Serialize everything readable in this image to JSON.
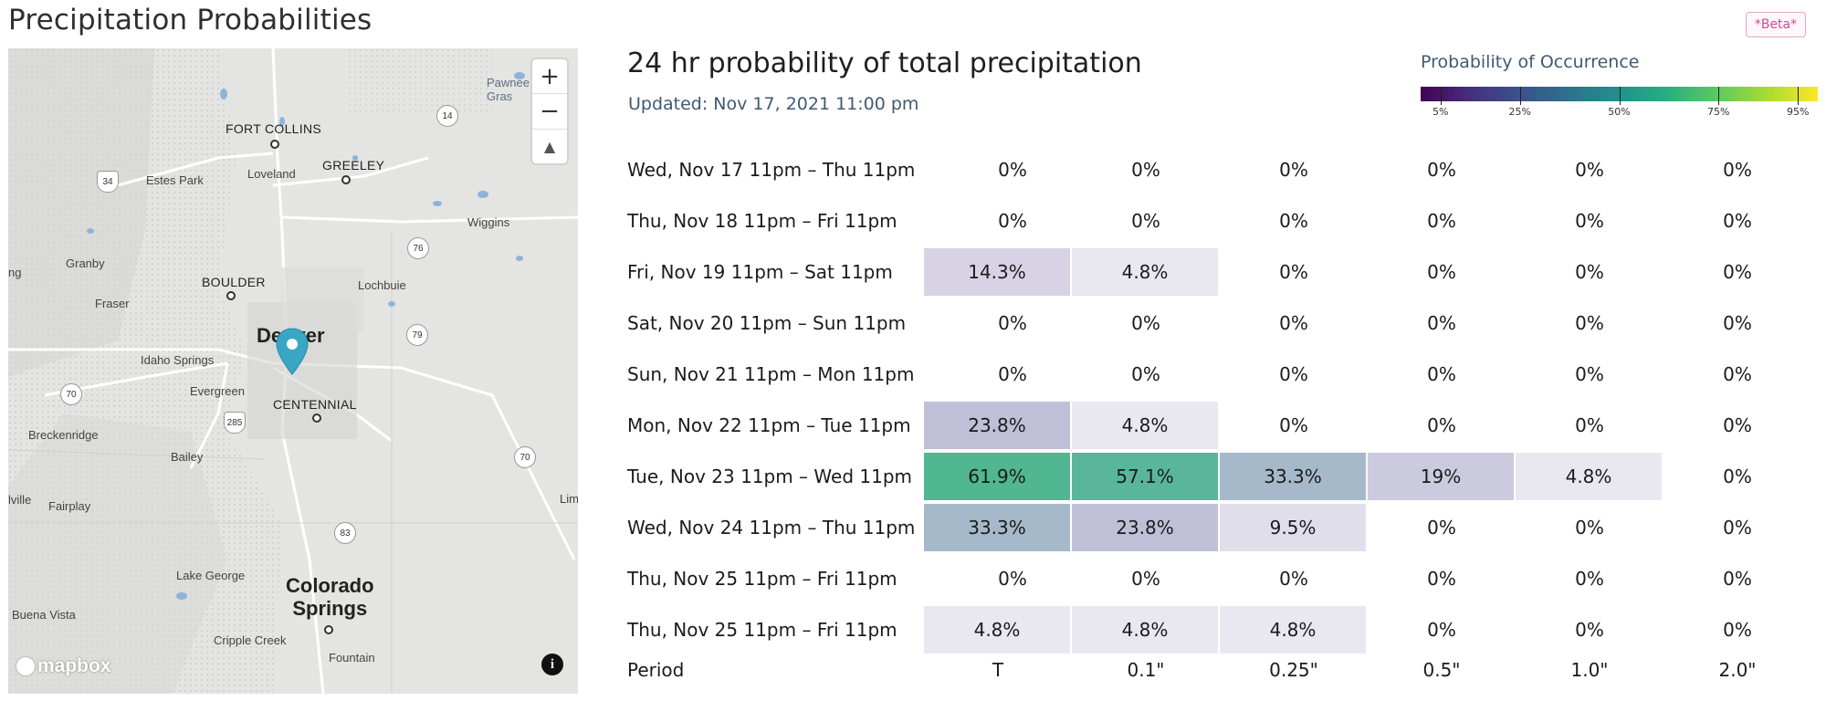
{
  "page_title": "Precipitation Probabilities",
  "beta_badge": "*Beta*",
  "map": {
    "labels": {
      "fort_collins": "FORT COLLINS",
      "greeley": "GREELEY",
      "loveland": "Loveland",
      "estes_park": "Estes Park",
      "wiggins": "Wiggins",
      "granby": "Granby",
      "boulder": "BOULDER",
      "lochbuie": "Lochbuie",
      "fraser": "Fraser",
      "denver": "Denver",
      "idaho_springs": "Idaho Springs",
      "evergreen": "Evergreen",
      "centennial": "CENTENNIAL",
      "breckenridge": "Breckenridge",
      "bailey": "Bailey",
      "fairplay": "Fairplay",
      "lake_george": "Lake George",
      "colorado_springs": "Colorado\nSprings",
      "buena_vista": "Buena Vista",
      "cripple_creek": "Cripple Creek",
      "fountain": "Fountain",
      "pawnee": "Pawnee\nGras",
      "limon": "Lim",
      "edge_ing": "ng",
      "edge_ville": "lville"
    },
    "shields": [
      "14",
      "34",
      "76",
      "79",
      "70",
      "285",
      "70",
      "83"
    ],
    "zoom_in": "+",
    "zoom_out": "−",
    "compass": "▲",
    "logo": "mapbox",
    "info": "i"
  },
  "panel": {
    "title": "24 hr probability of total precipitation",
    "updated": "Updated: Nov 17, 2021 11:00 pm"
  },
  "legend": {
    "title": "Probability of Occurrence",
    "ticks": [
      "5%",
      "25%",
      "50%",
      "75%",
      "95%"
    ],
    "tick_values": [
      5,
      25,
      50,
      75,
      95
    ]
  },
  "table": {
    "columns": [
      "T",
      "0.1\"",
      "0.25\"",
      "0.5\"",
      "1.0\"",
      "2.0\""
    ],
    "footer_label": "Period",
    "rows": [
      {
        "period": "Wed, Nov 17 11pm – Thu 11pm",
        "values": [
          "0%",
          "0%",
          "0%",
          "0%",
          "0%",
          "0%"
        ],
        "probs": [
          0,
          0,
          0,
          0,
          0,
          0
        ]
      },
      {
        "period": "Thu, Nov 18 11pm – Fri 11pm",
        "values": [
          "0%",
          "0%",
          "0%",
          "0%",
          "0%",
          "0%"
        ],
        "probs": [
          0,
          0,
          0,
          0,
          0,
          0
        ]
      },
      {
        "period": "Fri, Nov 19 11pm – Sat 11pm",
        "values": [
          "14.3%",
          "4.8%",
          "0%",
          "0%",
          "0%",
          "0%"
        ],
        "probs": [
          14.3,
          4.8,
          0,
          0,
          0,
          0
        ]
      },
      {
        "period": "Sat, Nov 20 11pm – Sun 11pm",
        "values": [
          "0%",
          "0%",
          "0%",
          "0%",
          "0%",
          "0%"
        ],
        "probs": [
          0,
          0,
          0,
          0,
          0,
          0
        ]
      },
      {
        "period": "Sun, Nov 21 11pm – Mon 11pm",
        "values": [
          "0%",
          "0%",
          "0%",
          "0%",
          "0%",
          "0%"
        ],
        "probs": [
          0,
          0,
          0,
          0,
          0,
          0
        ]
      },
      {
        "period": "Mon, Nov 22 11pm – Tue 11pm",
        "values": [
          "23.8%",
          "4.8%",
          "0%",
          "0%",
          "0%",
          "0%"
        ],
        "probs": [
          23.8,
          4.8,
          0,
          0,
          0,
          0
        ]
      },
      {
        "period": "Tue, Nov 23 11pm – Wed 11pm",
        "values": [
          "61.9%",
          "57.1%",
          "33.3%",
          "19%",
          "4.8%",
          "0%"
        ],
        "probs": [
          61.9,
          57.1,
          33.3,
          19,
          4.8,
          0
        ]
      },
      {
        "period": "Wed, Nov 24 11pm – Thu 11pm",
        "values": [
          "33.3%",
          "23.8%",
          "9.5%",
          "0%",
          "0%",
          "0%"
        ],
        "probs": [
          33.3,
          23.8,
          9.5,
          0,
          0,
          0
        ]
      },
      {
        "period": "Thu, Nov 25 11pm – Fri 11pm",
        "values": [
          "0%",
          "0%",
          "0%",
          "0%",
          "0%",
          "0%"
        ],
        "probs": [
          0,
          0,
          0,
          0,
          0,
          0
        ]
      },
      {
        "period": "Thu, Nov 25 11pm – Fri 11pm",
        "values": [
          "4.8%",
          "4.8%",
          "4.8%",
          "0%",
          "0%",
          "0%"
        ],
        "probs": [
          4.8,
          4.8,
          4.8,
          0,
          0,
          0
        ]
      }
    ]
  }
}
